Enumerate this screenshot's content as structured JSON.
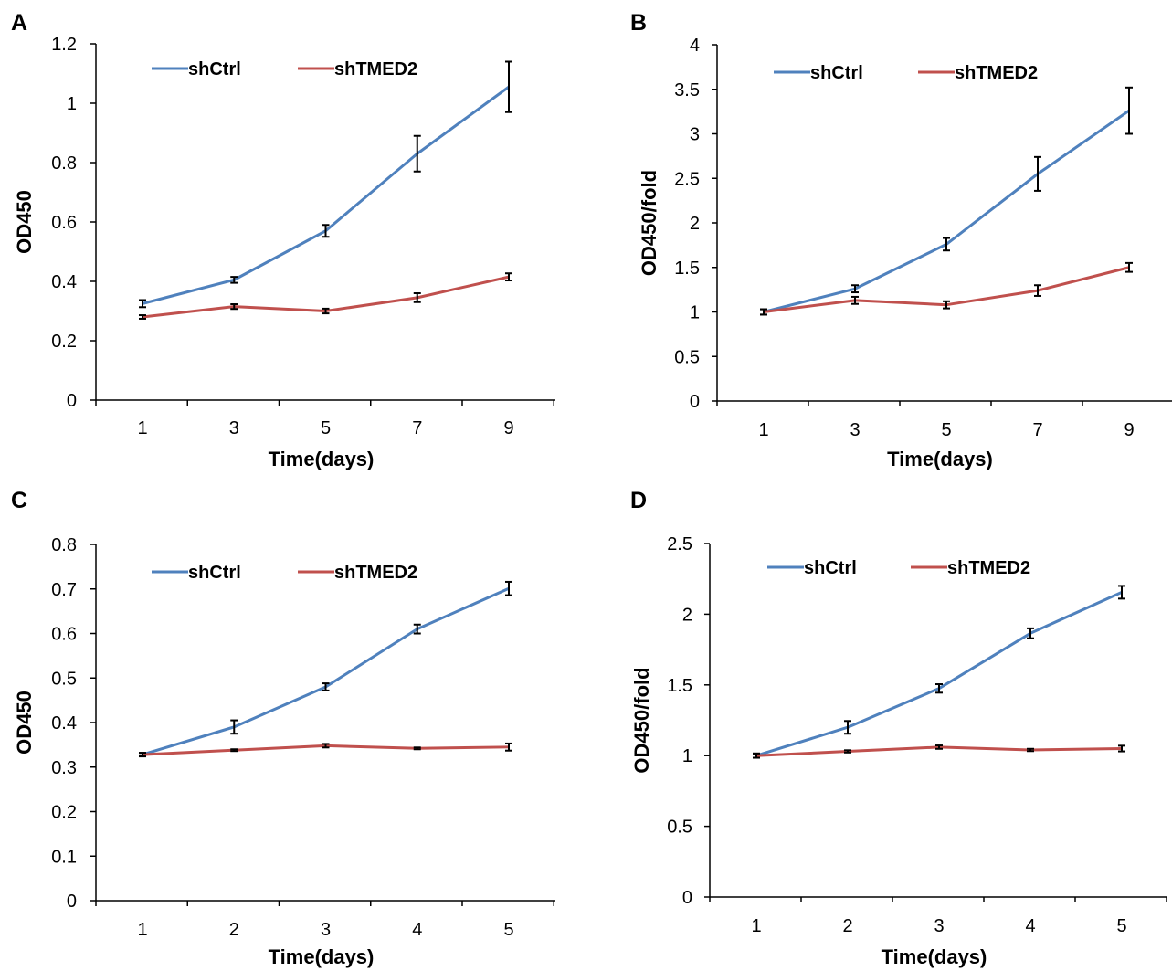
{
  "colors": {
    "shCtrl": "#4f81bd",
    "shTMED2": "#c0504d",
    "axis": "#000000"
  },
  "chart_data": [
    {
      "panel": "A",
      "type": "line",
      "xlabel": "Time(days)",
      "ylabel": "OD450",
      "x": [
        1,
        3,
        5,
        7,
        9
      ],
      "ylim": [
        0,
        1.2
      ],
      "yticks": [
        "0",
        "0.2",
        "0.4",
        "0.6",
        "0.8",
        "1",
        "1.2"
      ],
      "grid": false,
      "legend_position": "top",
      "series": [
        {
          "name": "shCtrl",
          "color": "#4f81bd",
          "values": [
            0.325,
            0.405,
            0.57,
            0.83,
            1.055
          ],
          "errors": [
            0.012,
            0.01,
            0.02,
            0.06,
            0.085
          ]
        },
        {
          "name": "shTMED2",
          "color": "#c0504d",
          "values": [
            0.28,
            0.315,
            0.3,
            0.345,
            0.415
          ],
          "errors": [
            0.006,
            0.008,
            0.008,
            0.015,
            0.012
          ]
        }
      ]
    },
    {
      "panel": "B",
      "type": "line",
      "xlabel": "Time(days)",
      "ylabel": "OD450/fold",
      "x": [
        1,
        3,
        5,
        7,
        9
      ],
      "ylim": [
        0,
        4
      ],
      "yticks": [
        "0",
        "0.5",
        "1",
        "1.5",
        "2",
        "2.5",
        "3",
        "3.5",
        "4"
      ],
      "grid": false,
      "legend_position": "top",
      "series": [
        {
          "name": "shCtrl",
          "color": "#4f81bd",
          "values": [
            1.0,
            1.26,
            1.76,
            2.55,
            3.26
          ],
          "errors": [
            0.03,
            0.04,
            0.07,
            0.19,
            0.26
          ]
        },
        {
          "name": "shTMED2",
          "color": "#c0504d",
          "values": [
            1.0,
            1.13,
            1.08,
            1.24,
            1.5
          ],
          "errors": [
            0.03,
            0.04,
            0.04,
            0.06,
            0.05
          ]
        }
      ]
    },
    {
      "panel": "C",
      "type": "line",
      "xlabel": "Time(days)",
      "ylabel": "OD450",
      "x": [
        1,
        2,
        3,
        4,
        5
      ],
      "ylim": [
        0,
        0.8
      ],
      "yticks": [
        "0",
        "0.1",
        "0.2",
        "0.3",
        "0.4",
        "0.5",
        "0.6",
        "0.7",
        "0.8"
      ],
      "grid": false,
      "legend_position": "top",
      "series": [
        {
          "name": "shCtrl",
          "color": "#4f81bd",
          "values": [
            0.328,
            0.39,
            0.48,
            0.61,
            0.701
          ],
          "errors": [
            0.004,
            0.015,
            0.008,
            0.01,
            0.015
          ]
        },
        {
          "name": "shTMED2",
          "color": "#c0504d",
          "values": [
            0.328,
            0.338,
            0.348,
            0.342,
            0.345
          ],
          "errors": [
            0.004,
            0.002,
            0.004,
            0.002,
            0.008
          ]
        }
      ]
    },
    {
      "panel": "D",
      "type": "line",
      "xlabel": "Time(days)",
      "ylabel": "OD450/fold",
      "x": [
        1,
        2,
        3,
        4,
        5
      ],
      "ylim": [
        0,
        2.5
      ],
      "yticks": [
        "0",
        "0.5",
        "1",
        "1.5",
        "2",
        "2.5"
      ],
      "grid": false,
      "legend_position": "top",
      "series": [
        {
          "name": "shCtrl",
          "color": "#4f81bd",
          "values": [
            1.0,
            1.2,
            1.475,
            1.865,
            2.155
          ],
          "errors": [
            0.015,
            0.045,
            0.03,
            0.035,
            0.045
          ]
        },
        {
          "name": "shTMED2",
          "color": "#c0504d",
          "values": [
            1.0,
            1.03,
            1.06,
            1.04,
            1.05
          ],
          "errors": [
            0.015,
            0.008,
            0.012,
            0.008,
            0.02
          ]
        }
      ]
    }
  ]
}
